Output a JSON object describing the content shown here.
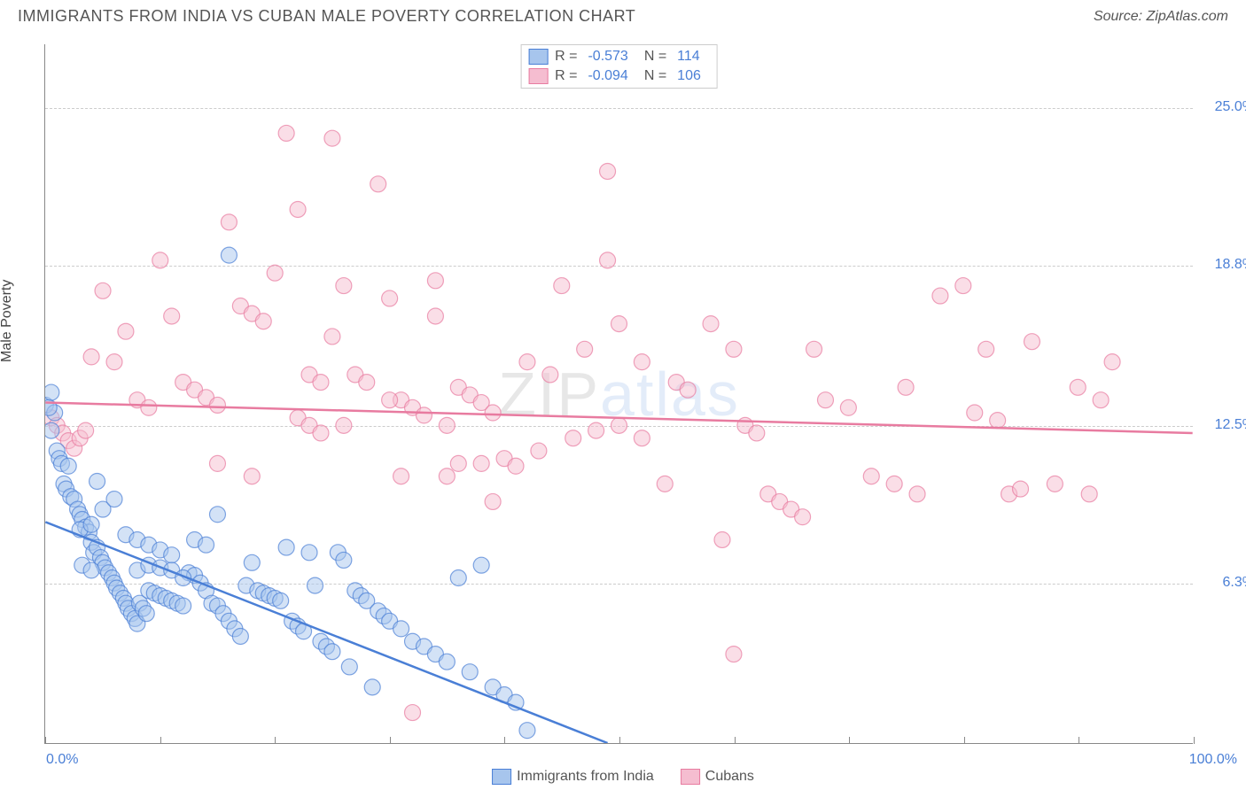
{
  "title": "IMMIGRANTS FROM INDIA VS CUBAN MALE POVERTY CORRELATION CHART",
  "source": "Source: ZipAtlas.com",
  "ylabel": "Male Poverty",
  "watermark_part1": "ZIP",
  "watermark_part2": "atlas",
  "chart": {
    "type": "scatter",
    "xlim": [
      0,
      100
    ],
    "ylim": [
      0,
      27.5
    ],
    "y_tick_labels": [
      {
        "v": 25.0,
        "label": "25.0%"
      },
      {
        "v": 18.8,
        "label": "18.8%"
      },
      {
        "v": 12.5,
        "label": "12.5%"
      },
      {
        "v": 6.3,
        "label": "6.3%"
      }
    ],
    "x_minor_ticks": [
      0,
      10,
      20,
      30,
      40,
      50,
      60,
      70,
      80,
      90,
      100
    ],
    "x_axis_left_label": "0.0%",
    "x_axis_right_label": "100.0%",
    "background_color": "#ffffff",
    "grid_color": "#cccccc",
    "marker_radius": 9,
    "marker_opacity": 0.5,
    "line_width": 2.5,
    "series": {
      "india": {
        "label": "Immigrants from India",
        "color_stroke": "#4a7fd6",
        "color_fill": "#a7c5ed",
        "R": "-0.573",
        "N": "114",
        "trend": {
          "x1": 0,
          "y1": 8.7,
          "x2": 49,
          "y2": 0
        },
        "trend_dashed": {
          "x1": 40,
          "y1": 1.6,
          "x2": 49,
          "y2": 0
        },
        "points": [
          [
            0,
            13.3
          ],
          [
            0.5,
            12.3
          ],
          [
            0.8,
            13.0
          ],
          [
            0.3,
            13.2
          ],
          [
            0.5,
            13.8
          ],
          [
            1,
            11.5
          ],
          [
            1.2,
            11.2
          ],
          [
            1.4,
            11.0
          ],
          [
            1.6,
            10.2
          ],
          [
            1.8,
            10.0
          ],
          [
            2,
            10.9
          ],
          [
            2.2,
            9.7
          ],
          [
            2.5,
            9.6
          ],
          [
            2.8,
            9.2
          ],
          [
            3,
            9.0
          ],
          [
            3.2,
            8.8
          ],
          [
            3.5,
            8.5
          ],
          [
            3.8,
            8.3
          ],
          [
            4,
            7.9
          ],
          [
            4.2,
            7.5
          ],
          [
            4.5,
            7.7
          ],
          [
            4.8,
            7.3
          ],
          [
            5,
            7.1
          ],
          [
            5.2,
            6.9
          ],
          [
            5.5,
            6.7
          ],
          [
            5.8,
            6.5
          ],
          [
            6,
            6.3
          ],
          [
            6.2,
            6.1
          ],
          [
            6.5,
            5.9
          ],
          [
            6.8,
            5.7
          ],
          [
            7,
            5.5
          ],
          [
            7.2,
            5.3
          ],
          [
            7.5,
            5.1
          ],
          [
            7.8,
            4.9
          ],
          [
            8,
            4.7
          ],
          [
            8.2,
            5.5
          ],
          [
            8.5,
            5.3
          ],
          [
            8.8,
            5.1
          ],
          [
            9,
            6.0
          ],
          [
            9.5,
            5.9
          ],
          [
            10,
            5.8
          ],
          [
            10.5,
            5.7
          ],
          [
            11,
            5.6
          ],
          [
            11.5,
            5.5
          ],
          [
            12,
            5.4
          ],
          [
            12.5,
            6.7
          ],
          [
            13,
            6.6
          ],
          [
            13.5,
            6.3
          ],
          [
            14,
            6.0
          ],
          [
            14.5,
            5.5
          ],
          [
            15,
            5.4
          ],
          [
            15.5,
            5.1
          ],
          [
            16,
            4.8
          ],
          [
            16.5,
            4.5
          ],
          [
            17,
            4.2
          ],
          [
            17.5,
            6.2
          ],
          [
            18,
            7.1
          ],
          [
            18.5,
            6.0
          ],
          [
            19,
            5.9
          ],
          [
            19.5,
            5.8
          ],
          [
            20,
            5.7
          ],
          [
            20.5,
            5.6
          ],
          [
            21,
            7.7
          ],
          [
            21.5,
            4.8
          ],
          [
            22,
            4.6
          ],
          [
            22.5,
            4.4
          ],
          [
            23,
            7.5
          ],
          [
            23.5,
            6.2
          ],
          [
            24,
            4.0
          ],
          [
            24.5,
            3.8
          ],
          [
            25,
            3.6
          ],
          [
            25.5,
            7.5
          ],
          [
            26,
            7.2
          ],
          [
            26.5,
            3.0
          ],
          [
            27,
            6.0
          ],
          [
            27.5,
            5.8
          ],
          [
            28,
            5.6
          ],
          [
            28.5,
            2.2
          ],
          [
            29,
            5.2
          ],
          [
            29.5,
            5.0
          ],
          [
            30,
            4.8
          ],
          [
            31,
            4.5
          ],
          [
            32,
            4.0
          ],
          [
            33,
            3.8
          ],
          [
            34,
            3.5
          ],
          [
            35,
            3.2
          ],
          [
            36,
            6.5
          ],
          [
            37,
            2.8
          ],
          [
            38,
            7.0
          ],
          [
            39,
            2.2
          ],
          [
            40,
            1.9
          ],
          [
            41,
            1.6
          ],
          [
            42,
            0.5
          ],
          [
            16,
            19.2
          ],
          [
            3,
            8.4
          ],
          [
            4,
            8.6
          ],
          [
            5,
            9.2
          ],
          [
            6,
            9.6
          ],
          [
            7,
            8.2
          ],
          [
            8,
            8.0
          ],
          [
            9,
            7.8
          ],
          [
            10,
            7.6
          ],
          [
            11,
            7.4
          ],
          [
            13,
            8.0
          ],
          [
            14,
            7.8
          ],
          [
            15,
            9.0
          ],
          [
            8,
            6.8
          ],
          [
            9,
            7.0
          ],
          [
            10,
            6.9
          ],
          [
            11,
            6.8
          ],
          [
            12,
            6.5
          ],
          [
            4.5,
            10.3
          ],
          [
            3.2,
            7.0
          ],
          [
            4.0,
            6.8
          ]
        ]
      },
      "cuban": {
        "label": "Cubans",
        "color_stroke": "#e87ba0",
        "color_fill": "#f5bdd0",
        "R": "-0.094",
        "N": "106",
        "trend": {
          "x1": 0,
          "y1": 13.4,
          "x2": 100,
          "y2": 12.2
        },
        "points": [
          [
            0.5,
            12.8
          ],
          [
            1,
            12.5
          ],
          [
            1.5,
            12.2
          ],
          [
            2,
            11.9
          ],
          [
            2.5,
            11.6
          ],
          [
            3,
            12.0
          ],
          [
            3.5,
            12.3
          ],
          [
            4,
            15.2
          ],
          [
            5,
            17.8
          ],
          [
            6,
            15.0
          ],
          [
            7,
            16.2
          ],
          [
            8,
            13.5
          ],
          [
            9,
            13.2
          ],
          [
            10,
            19.0
          ],
          [
            11,
            16.8
          ],
          [
            12,
            14.2
          ],
          [
            13,
            13.9
          ],
          [
            14,
            13.6
          ],
          [
            15,
            13.3
          ],
          [
            16,
            20.5
          ],
          [
            17,
            17.2
          ],
          [
            18,
            16.9
          ],
          [
            19,
            16.6
          ],
          [
            20,
            18.5
          ],
          [
            21,
            24.0
          ],
          [
            22,
            21.0
          ],
          [
            23,
            14.5
          ],
          [
            24,
            14.2
          ],
          [
            25,
            23.8
          ],
          [
            26,
            18.0
          ],
          [
            27,
            14.5
          ],
          [
            28,
            14.2
          ],
          [
            29,
            22.0
          ],
          [
            30,
            17.5
          ],
          [
            31,
            13.5
          ],
          [
            32,
            13.2
          ],
          [
            33,
            12.9
          ],
          [
            34,
            18.2
          ],
          [
            35,
            10.5
          ],
          [
            36,
            14.0
          ],
          [
            37,
            13.7
          ],
          [
            38,
            13.4
          ],
          [
            39,
            9.5
          ],
          [
            40,
            11.2
          ],
          [
            41,
            10.9
          ],
          [
            42,
            15.0
          ],
          [
            43,
            11.5
          ],
          [
            44,
            14.5
          ],
          [
            45,
            18.0
          ],
          [
            46,
            12.0
          ],
          [
            47,
            15.5
          ],
          [
            48,
            12.3
          ],
          [
            49,
            22.5
          ],
          [
            50,
            12.5
          ],
          [
            52,
            15.0
          ],
          [
            54,
            10.2
          ],
          [
            55,
            14.2
          ],
          [
            56,
            13.9
          ],
          [
            58,
            16.5
          ],
          [
            59,
            8.0
          ],
          [
            60,
            15.5
          ],
          [
            61,
            12.5
          ],
          [
            62,
            12.2
          ],
          [
            63,
            9.8
          ],
          [
            64,
            9.5
          ],
          [
            65,
            9.2
          ],
          [
            66,
            8.9
          ],
          [
            67,
            15.5
          ],
          [
            68,
            13.5
          ],
          [
            70,
            13.2
          ],
          [
            72,
            10.5
          ],
          [
            74,
            10.2
          ],
          [
            75,
            14.0
          ],
          [
            76,
            9.8
          ],
          [
            78,
            17.6
          ],
          [
            80,
            18.0
          ],
          [
            81,
            13.0
          ],
          [
            82,
            15.5
          ],
          [
            83,
            12.7
          ],
          [
            84,
            9.8
          ],
          [
            85,
            10.0
          ],
          [
            86,
            15.8
          ],
          [
            88,
            10.2
          ],
          [
            90,
            14.0
          ],
          [
            91,
            9.8
          ],
          [
            92,
            13.5
          ],
          [
            93,
            15.0
          ],
          [
            49,
            19.0
          ],
          [
            50,
            16.5
          ],
          [
            52,
            12.0
          ],
          [
            22,
            12.8
          ],
          [
            23,
            12.5
          ],
          [
            24,
            12.2
          ],
          [
            25,
            16.0
          ],
          [
            26,
            12.5
          ],
          [
            34,
            16.8
          ],
          [
            35,
            12.5
          ],
          [
            36,
            11.0
          ],
          [
            32,
            1.2
          ],
          [
            60,
            3.5
          ],
          [
            38,
            11.0
          ],
          [
            39,
            13.0
          ],
          [
            15,
            11.0
          ],
          [
            18,
            10.5
          ],
          [
            30,
            13.5
          ],
          [
            31,
            10.5
          ]
        ]
      }
    }
  }
}
